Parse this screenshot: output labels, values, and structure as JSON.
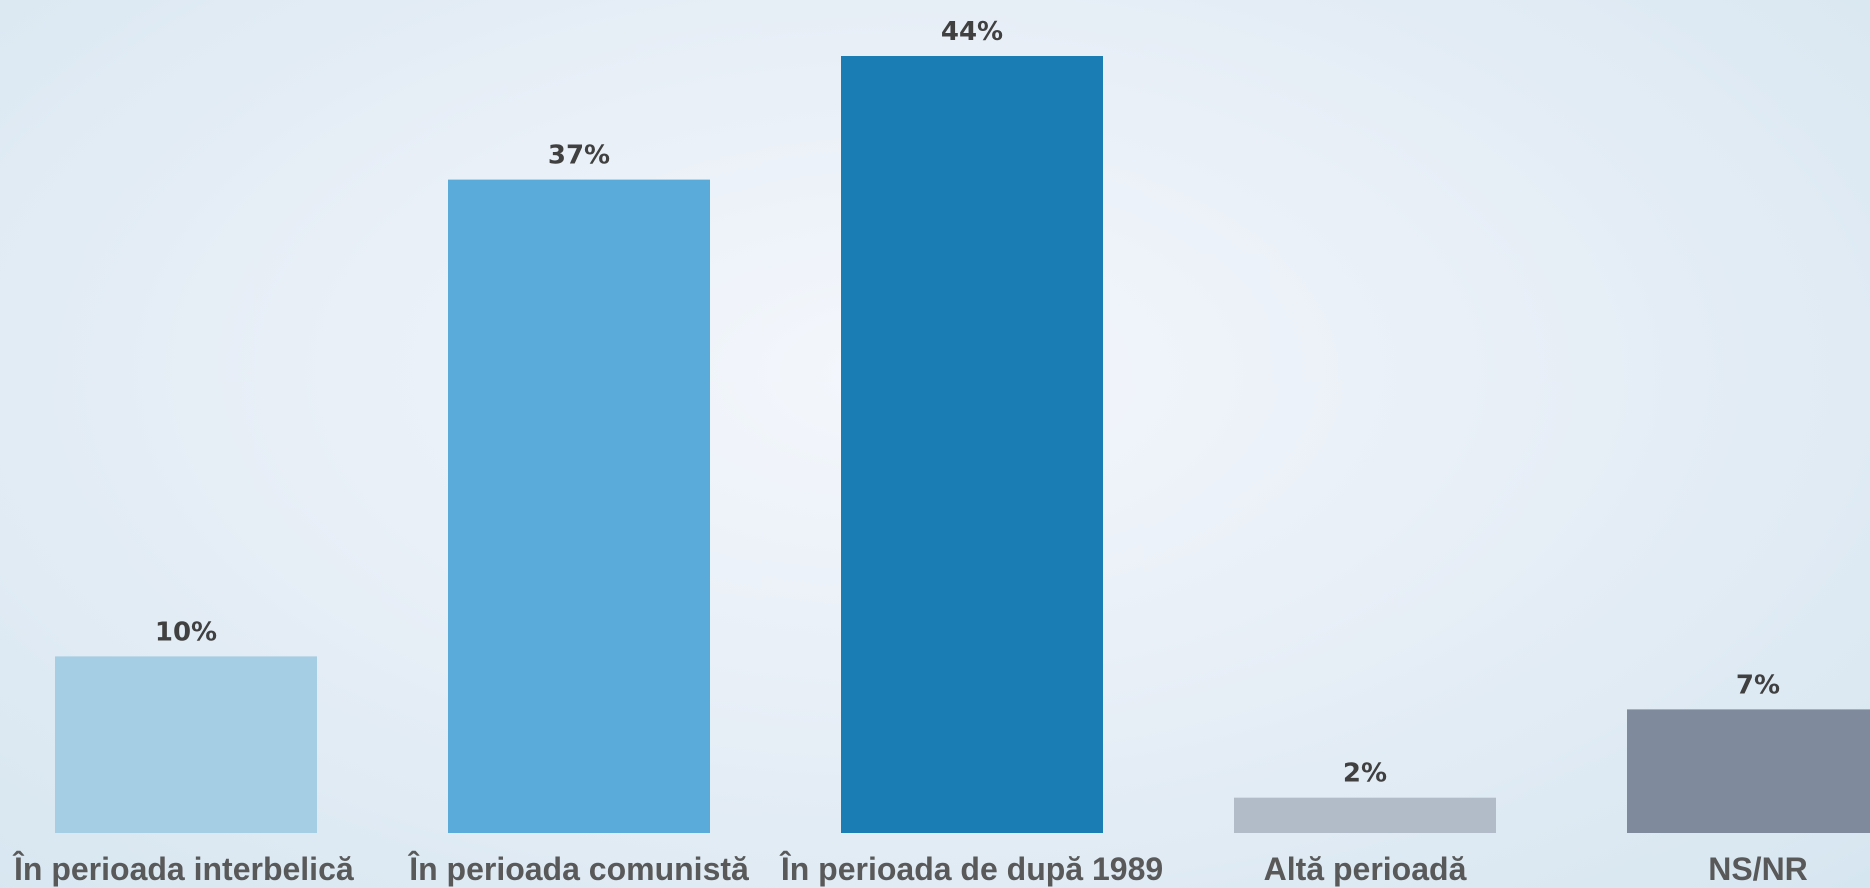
{
  "chart_data": {
    "type": "bar",
    "categories": [
      "În perioada interbelică",
      "În perioada comunistă",
      "În perioada de după 1989",
      "Altă perioadă",
      "NS/NR"
    ],
    "values": [
      10,
      37,
      44,
      2,
      7
    ],
    "data_labels": [
      "10%",
      "37%",
      "44%",
      "2%",
      "7%"
    ],
    "bar_colors": [
      "#a5cde3",
      "#5aabd9",
      "#1a7db4",
      "#b1bcc8",
      "#7f8b9d"
    ],
    "ylim": [
      0,
      44
    ],
    "grid": false,
    "legend": "none",
    "title": "",
    "xlabel": "",
    "ylabel": ""
  }
}
